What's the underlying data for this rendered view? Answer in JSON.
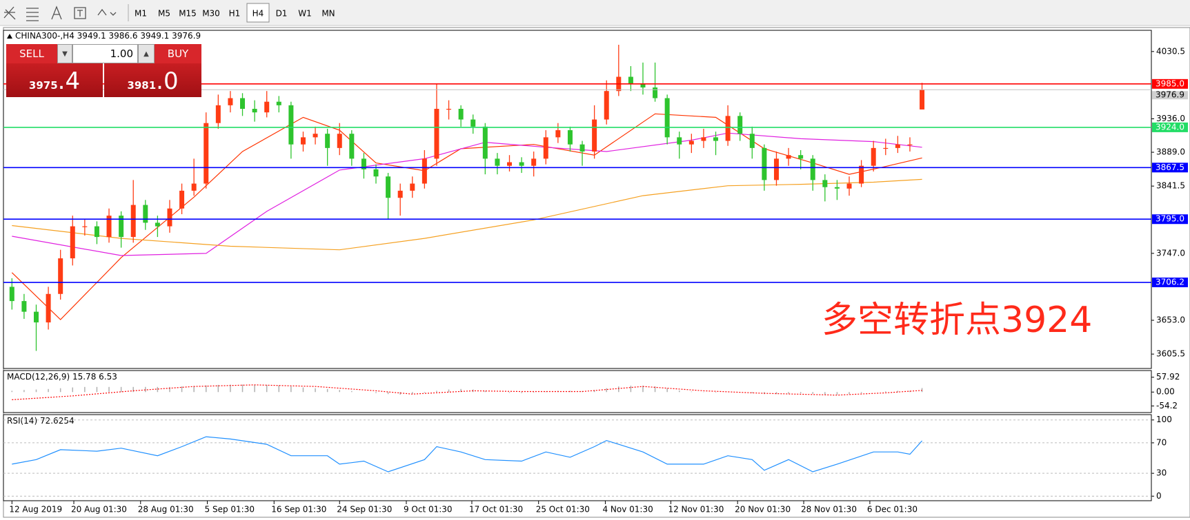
{
  "toolbar": {
    "timeframes": [
      "M1",
      "M5",
      "M15",
      "M30",
      "H1",
      "H4",
      "D1",
      "W1",
      "MN"
    ],
    "active": "H4"
  },
  "trade_panel": {
    "sell": "SELL",
    "buy": "BUY",
    "volume": "1.00",
    "bid_big": "3975",
    "bid_small": ".4",
    "ask_big": "3981",
    "ask_small": ".0"
  },
  "chart_data": [
    {
      "type": "candlestick",
      "title": "CHINA300-,H4",
      "candles": {
        "open": [
          3700,
          3680,
          3665,
          3650,
          3690,
          3740,
          3785,
          3785,
          3770,
          3800,
          3770,
          3815,
          3790,
          3785,
          3810,
          3835,
          3845,
          3930,
          3955,
          3965,
          3950,
          3945,
          3960,
          3955,
          3900,
          3910,
          3915,
          3895,
          3915,
          3880,
          3865,
          3855,
          3825,
          3835,
          3845,
          3880,
          3950,
          3950,
          3935,
          3925,
          3880,
          3870,
          3875,
          3870,
          3880,
          3910,
          3920,
          3900,
          3890,
          3935,
          3975,
          3995,
          3985,
          3980,
          3965,
          3910,
          3900,
          3905,
          3910,
          3905,
          3940,
          3915,
          3895,
          3850,
          3880,
          3885,
          3880,
          3850,
          3840,
          3838,
          3845,
          3870,
          3895,
          3895,
          3900,
          3949.1
        ],
        "high": [
          3712,
          3690,
          3675,
          3700,
          3752,
          3800,
          3795,
          3792,
          3810,
          3806,
          3850,
          3822,
          3800,
          3822,
          3845,
          3880,
          3945,
          3970,
          3975,
          3972,
          3962,
          3975,
          3968,
          3960,
          3918,
          3925,
          3922,
          3930,
          3920,
          3888,
          3872,
          3860,
          3845,
          3855,
          3892,
          3985,
          3962,
          3955,
          3942,
          3930,
          3888,
          3885,
          3882,
          3890,
          3920,
          3930,
          3925,
          3905,
          3955,
          3990,
          4040,
          4010,
          4015,
          4015,
          3970,
          3918,
          3915,
          3922,
          3918,
          3955,
          3945,
          3925,
          3900,
          3890,
          3895,
          3892,
          3885,
          3858,
          3850,
          3855,
          3878,
          3905,
          3908,
          3912,
          3910,
          3986.6
        ],
        "low": [
          3668,
          3655,
          3610,
          3640,
          3682,
          3730,
          3772,
          3760,
          3762,
          3755,
          3762,
          3780,
          3770,
          3776,
          3802,
          3828,
          3838,
          3922,
          3945,
          3940,
          3932,
          3938,
          3945,
          3880,
          3890,
          3900,
          3870,
          3885,
          3870,
          3852,
          3845,
          3795,
          3800,
          3825,
          3838,
          3870,
          3935,
          3925,
          3915,
          3858,
          3858,
          3862,
          3860,
          3855,
          3872,
          3902,
          3890,
          3870,
          3880,
          3928,
          3968,
          3975,
          3970,
          3960,
          3900,
          3880,
          3888,
          3895,
          3885,
          3898,
          3905,
          3880,
          3835,
          3842,
          3870,
          3865,
          3835,
          3820,
          3822,
          3828,
          3840,
          3862,
          3885,
          3888,
          3890,
          3949.1
        ],
        "close": [
          3680,
          3665,
          3650,
          3690,
          3740,
          3785,
          3785,
          3770,
          3800,
          3770,
          3815,
          3790,
          3785,
          3810,
          3835,
          3845,
          3930,
          3955,
          3965,
          3950,
          3945,
          3960,
          3955,
          3900,
          3910,
          3915,
          3895,
          3915,
          3880,
          3865,
          3855,
          3825,
          3835,
          3845,
          3880,
          3950,
          3950,
          3935,
          3925,
          3880,
          3870,
          3875,
          3870,
          3880,
          3910,
          3920,
          3900,
          3890,
          3935,
          3975,
          3995,
          3985,
          3980,
          3965,
          3910,
          3900,
          3905,
          3910,
          3905,
          3940,
          3915,
          3895,
          3850,
          3880,
          3885,
          3880,
          3850,
          3840,
          3838,
          3845,
          3870,
          3895,
          3895,
          3900,
          3900,
          3976.9
        ]
      },
      "up_color": "#ff3c14",
      "down_color": "#2ec42e",
      "series": [
        {
          "color": "#ff3300",
          "x": [
            0,
            4,
            9,
            15,
            19,
            24,
            27,
            30,
            34,
            37,
            43,
            48,
            53,
            58,
            62,
            66,
            69,
            72,
            75
          ],
          "values": [
            3720,
            3654,
            3741,
            3826,
            3890,
            3938,
            3920,
            3874,
            3863,
            3894,
            3900,
            3885,
            3943,
            3938,
            3894,
            3874,
            3858,
            3869,
            3881
          ]
        },
        {
          "color": "#e020e0",
          "x": [
            0,
            9,
            16,
            21,
            27,
            34,
            39,
            44,
            49,
            56,
            59,
            65,
            71,
            75
          ],
          "values": [
            3771,
            3744,
            3747,
            3806,
            3864,
            3880,
            3903,
            3896,
            3890,
            3906,
            3916,
            3908,
            3904,
            3896
          ]
        },
        {
          "color": "#f5a020",
          "x": [
            0,
            9,
            18,
            27,
            34,
            43,
            52,
            59,
            65,
            71,
            75
          ],
          "values": [
            3786,
            3768,
            3757,
            3752,
            3768,
            3794,
            3828,
            3842,
            3844,
            3847,
            3851
          ]
        }
      ],
      "hlines": [
        {
          "value": 3985.0,
          "label": "3985.0",
          "color": "#ff0000"
        },
        {
          "value": 3924.0,
          "label": "3924.0",
          "color": "#22dd66"
        },
        {
          "value": 3867.5,
          "label": "3867.5",
          "color": "#0000ff"
        },
        {
          "value": 3795.0,
          "label": "3795.0",
          "color": "#0000ff"
        },
        {
          "value": 3706.2,
          "label": "3706.2",
          "color": "#0000ff"
        }
      ],
      "last_price_color": "#c0c0c0",
      "ylim": [
        3585.3,
        4060.3
      ],
      "yticks": [
        4030.5,
        {
          "value": 3936,
          "label": "3936.0"
        },
        {
          "value": 3889,
          "label": "3889.0"
        },
        3841.5,
        {
          "value": 3747,
          "label": "3747.0"
        },
        {
          "value": 3653,
          "label": "3653.0"
        },
        3605.5
      ],
      "xlim": [
        -0.7,
        93.9
      ],
      "xticks": [
        {
          "value": 0,
          "label": "12 Aug 2019"
        },
        {
          "value": 5.1,
          "label": "20 Aug 01:30"
        },
        {
          "value": 10.6,
          "label": "28 Aug 01:30"
        },
        {
          "value": 16.1,
          "label": "5 Sep 01:30"
        },
        {
          "value": 21.6,
          "label": "16 Sep 01:30"
        },
        {
          "value": 27,
          "label": "24 Sep 01:30"
        },
        {
          "value": 32.5,
          "label": "9 Oct 01:30"
        },
        {
          "value": 37.9,
          "label": "17 Oct 01:30"
        },
        {
          "value": 43.4,
          "label": "25 Oct 01:30"
        },
        {
          "value": 48.9,
          "label": "4 Nov 01:30"
        },
        {
          "value": 54.3,
          "label": "12 Nov 01:30"
        },
        {
          "value": 59.8,
          "label": "20 Nov 01:30"
        },
        {
          "value": 65.25,
          "label": "28 Nov 01:30"
        },
        {
          "value": 70.7,
          "label": "6 Dec 01:30"
        }
      ],
      "annotation": "多空转折点3924",
      "annotation_color": "#ff2a1a"
    },
    {
      "type": "macd",
      "title": "MACD(12,26,9)",
      "histogram": {
        "color": "#b0b0b0",
        "values": [
          5,
          8,
          10,
          12,
          15,
          18,
          20,
          20,
          20,
          20,
          20,
          20,
          20,
          20,
          22,
          24,
          26,
          28,
          29,
          29,
          29,
          28,
          26,
          22,
          18,
          15,
          12,
          8,
          4,
          0,
          -4,
          -8,
          -10,
          -8,
          -3,
          5,
          10,
          12,
          10,
          5,
          0,
          -3,
          -4,
          -2,
          2,
          5,
          5,
          4,
          8,
          15,
          22,
          25,
          25,
          22,
          14,
          6,
          2,
          -1,
          -2,
          0,
          -2,
          -4,
          -8,
          -8,
          -6,
          -5,
          -7,
          -10,
          -10,
          -8,
          -4,
          0,
          3,
          5,
          5,
          15.78
        ]
      },
      "signal": {
        "color": "#ff0000",
        "x": [
          0,
          5,
          10,
          15,
          20,
          25,
          30,
          33,
          38,
          42,
          47,
          52,
          57,
          62,
          68,
          72,
          75
        ],
        "values": [
          -30,
          -15,
          5,
          22,
          28,
          22,
          5,
          -8,
          5,
          2,
          2,
          22,
          5,
          -5,
          -12,
          -3,
          6.53
        ]
      },
      "ylim": [
        -80,
        84
      ],
      "yticks": [
        57.92,
        {
          "value": 0,
          "label": "0.00"
        },
        -54.2
      ]
    },
    {
      "type": "line",
      "title": "RSI(14)",
      "series": [
        {
          "color": "#1e8fff",
          "x": [
            0,
            2,
            4,
            7,
            9,
            12,
            14,
            16,
            18,
            21,
            23,
            26,
            27,
            29,
            31,
            34,
            35,
            37,
            39,
            42,
            44,
            46,
            48,
            49,
            52,
            54,
            57,
            59,
            61,
            62,
            64,
            66,
            68,
            71,
            73,
            74,
            75
          ],
          "values": [
            42,
            48,
            61,
            59,
            63,
            53,
            65,
            78,
            75,
            68,
            53,
            53,
            42,
            46,
            32,
            48,
            65,
            58,
            48,
            46,
            58,
            51,
            65,
            73,
            58,
            42,
            42,
            53,
            48,
            34,
            48,
            32,
            42,
            58,
            58,
            55,
            72.6254
          ]
        }
      ],
      "ylim": [
        -6,
        107
      ],
      "yticks": [
        100,
        70,
        30,
        0
      ],
      "grid": "dashed"
    }
  ]
}
